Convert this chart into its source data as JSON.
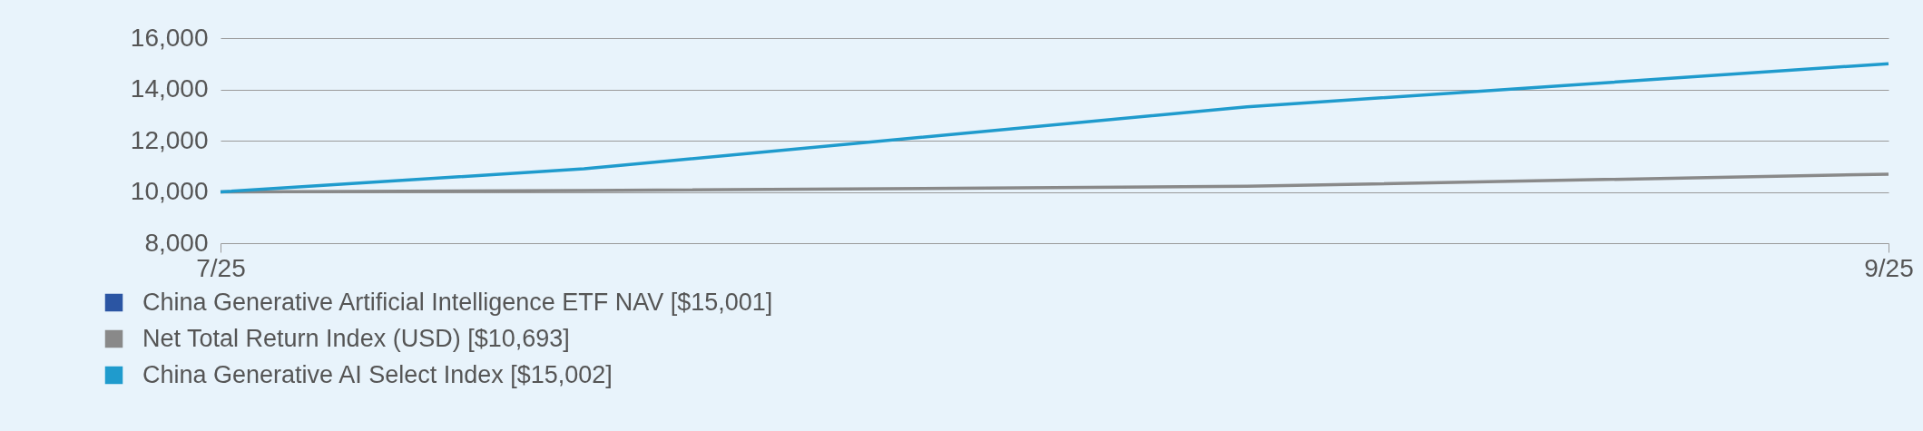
{
  "chart_data": {
    "type": "line",
    "x": [
      "2025-07-14",
      "2025-07-31",
      "2025-08-31",
      "2025-09-30"
    ],
    "series": [
      {
        "name": "China Generative Artificial Intelligence ETF NAV [$15,001]",
        "color": "#2b55a3",
        "values": [
          null,
          null,
          null,
          null
        ]
      },
      {
        "name": "Net Total Return Index  (USD) [$10,693]",
        "color": "#898989",
        "values": [
          10000,
          10050,
          10220,
          10693
        ]
      },
      {
        "name": "China Generative AI Select Index [$15,002]",
        "color": "#1f9bcd",
        "values": [
          10000,
          10900,
          13320,
          15002
        ]
      }
    ],
    "xlim": [
      "2025-07-14",
      "2025-09-30"
    ],
    "xticks": [
      {
        "value": "2025-07-14",
        "label": "7/25"
      },
      {
        "value": "2025-09-30",
        "label": "9/25"
      }
    ],
    "ylim": [
      8000,
      16000
    ],
    "yticks": [
      {
        "value": 8000,
        "label": "8,000"
      },
      {
        "value": 10000,
        "label": "10,000"
      },
      {
        "value": 12000,
        "label": "12,000"
      },
      {
        "value": 14000,
        "label": "14,000"
      },
      {
        "value": 16000,
        "label": "16,000"
      }
    ],
    "grid": "y",
    "legend": "bottom left",
    "marker": "none",
    "line_style": "solid"
  }
}
